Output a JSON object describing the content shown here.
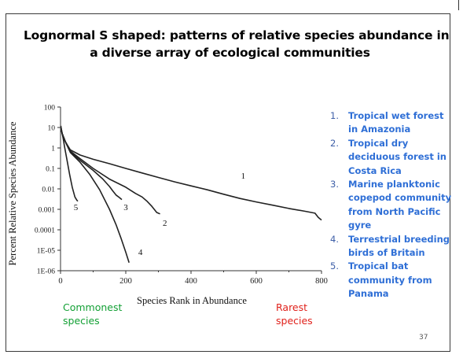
{
  "slide": {
    "title_line1": "Lognormal S shaped: patterns of relative species abundance in",
    "title_line2": "a diverse array of ecological communities",
    "page_number": "37",
    "commonest": "Commonest species",
    "rarest": "Rarest species",
    "colors": {
      "commonest": "#13a035",
      "rarest": "#e0211b",
      "legend": "#2f6fd6"
    }
  },
  "legend": [
    {
      "num": "1.",
      "text": "Tropical wet forest in Amazonia"
    },
    {
      "num": "2.",
      "text": "Tropical dry deciduous forest in Costa Rica"
    },
    {
      "num": "3.",
      "text": "Marine planktonic copepod community from North Pacific gyre"
    },
    {
      "num": "4.",
      "text": "Terrestrial breeding birds of Britain"
    },
    {
      "num": "5.",
      "text": "Tropical bat community from Panama"
    }
  ],
  "chart_data": {
    "type": "line",
    "xlabel": "Species Rank in Abundance",
    "ylabel": "Percent Relative Species Abundance",
    "xlim": [
      0,
      800
    ],
    "ylim": [
      1e-06,
      100
    ],
    "y_scale": "log",
    "x_ticks": [
      "0",
      "200",
      "400",
      "600",
      "800"
    ],
    "x_tick_values": [
      0,
      200,
      400,
      600,
      800
    ],
    "y_ticks": [
      "100",
      "10",
      "1",
      "0.1",
      "0.01",
      "0.001",
      "0.0001",
      "1E-05",
      "1E-06"
    ],
    "y_tick_values": [
      100,
      10,
      1,
      0.1,
      0.01,
      0.001,
      0.0001,
      1e-05,
      1e-06
    ],
    "grid": false,
    "series": [
      {
        "name": "1",
        "label_at": [
          560,
          0.045
        ],
        "points": [
          [
            1,
            10
          ],
          [
            5,
            5
          ],
          [
            15,
            2
          ],
          [
            30,
            0.8
          ],
          [
            60,
            0.45
          ],
          [
            100,
            0.28
          ],
          [
            150,
            0.17
          ],
          [
            200,
            0.1
          ],
          [
            250,
            0.06
          ],
          [
            300,
            0.036
          ],
          [
            350,
            0.022
          ],
          [
            400,
            0.014
          ],
          [
            450,
            0.009
          ],
          [
            500,
            0.0055
          ],
          [
            550,
            0.0034
          ],
          [
            600,
            0.0023
          ],
          [
            650,
            0.0016
          ],
          [
            700,
            0.0011
          ],
          [
            750,
            0.0008
          ],
          [
            780,
            0.00065
          ],
          [
            790,
            0.0004
          ],
          [
            800,
            0.0003
          ]
        ]
      },
      {
        "name": "2",
        "label_at": [
          320,
          0.00022
        ],
        "points": [
          [
            1,
            10
          ],
          [
            5,
            5
          ],
          [
            15,
            2
          ],
          [
            30,
            0.7
          ],
          [
            60,
            0.3
          ],
          [
            100,
            0.1
          ],
          [
            150,
            0.03
          ],
          [
            200,
            0.012
          ],
          [
            230,
            0.006
          ],
          [
            250,
            0.004
          ],
          [
            265,
            0.0025
          ],
          [
            280,
            0.0014
          ],
          [
            295,
            0.0007
          ],
          [
            305,
            0.0006
          ]
        ]
      },
      {
        "name": "3",
        "label_at": [
          200,
          0.0013
        ],
        "points": [
          [
            1,
            10
          ],
          [
            5,
            5
          ],
          [
            15,
            2
          ],
          [
            30,
            0.65
          ],
          [
            60,
            0.25
          ],
          [
            100,
            0.08
          ],
          [
            130,
            0.03
          ],
          [
            150,
            0.013
          ],
          [
            160,
            0.008
          ],
          [
            170,
            0.005
          ],
          [
            180,
            0.0038
          ],
          [
            188,
            0.003
          ]
        ]
      },
      {
        "name": "4",
        "label_at": [
          245,
          8.5e-06
        ],
        "points": [
          [
            1,
            10
          ],
          [
            5,
            5
          ],
          [
            15,
            2
          ],
          [
            30,
            0.6
          ],
          [
            60,
            0.2
          ],
          [
            90,
            0.05
          ],
          [
            120,
            0.009
          ],
          [
            150,
            0.001
          ],
          [
            170,
            0.00018
          ],
          [
            185,
            4e-05
          ],
          [
            200,
            8e-06
          ],
          [
            210,
            2.5e-06
          ]
        ]
      },
      {
        "name": "5",
        "label_at": [
          47,
          0.0013
        ],
        "points": [
          [
            1,
            12
          ],
          [
            4,
            6
          ],
          [
            8,
            3
          ],
          [
            12,
            1.2
          ],
          [
            20,
            0.25
          ],
          [
            28,
            0.05
          ],
          [
            36,
            0.012
          ],
          [
            44,
            0.004
          ],
          [
            50,
            0.0028
          ],
          [
            53,
            0.0025
          ]
        ]
      }
    ]
  }
}
